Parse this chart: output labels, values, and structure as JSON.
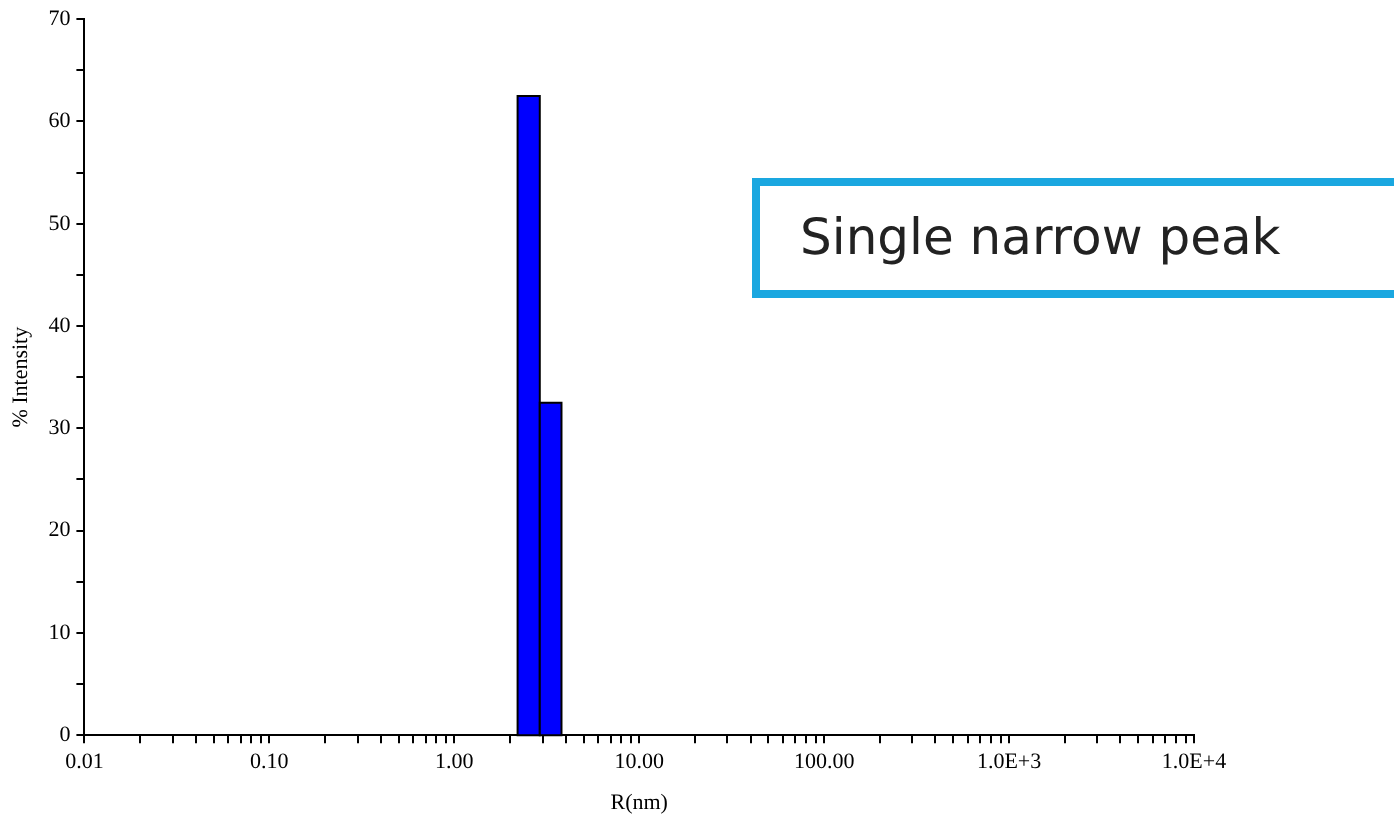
{
  "chart_data": {
    "type": "histogram",
    "xlabel": "R(nm)",
    "ylabel": "% Intensity",
    "annotations": [
      "Single narrow peak"
    ],
    "bins": [
      2.2,
      2.9,
      3.8
    ],
    "values": [
      62.5,
      32.5
    ],
    "color": "#0000ff",
    "log": "x",
    "grid": false,
    "xlim": [
      0.01,
      10000
    ],
    "xticks": [
      {
        "value": 0.01,
        "label": "0.01"
      },
      {
        "value": 0.02,
        "label": null
      },
      {
        "value": 0.03,
        "label": null
      },
      {
        "value": 0.04,
        "label": null
      },
      {
        "value": 0.05,
        "label": null
      },
      {
        "value": 0.06,
        "label": null
      },
      {
        "value": 0.07,
        "label": null
      },
      {
        "value": 0.08,
        "label": null
      },
      {
        "value": 0.09,
        "label": null
      },
      {
        "value": 0.1,
        "label": "0.10"
      },
      {
        "value": 0.2,
        "label": null
      },
      {
        "value": 0.3,
        "label": null
      },
      {
        "value": 0.4,
        "label": null
      },
      {
        "value": 0.5,
        "label": null
      },
      {
        "value": 0.6,
        "label": null
      },
      {
        "value": 0.7,
        "label": null
      },
      {
        "value": 0.8,
        "label": null
      },
      {
        "value": 0.9,
        "label": null
      },
      {
        "value": 1,
        "label": "1.00"
      },
      {
        "value": 2,
        "label": null
      },
      {
        "value": 3,
        "label": null
      },
      {
        "value": 4,
        "label": null
      },
      {
        "value": 5,
        "label": null
      },
      {
        "value": 6,
        "label": null
      },
      {
        "value": 7,
        "label": null
      },
      {
        "value": 8,
        "label": null
      },
      {
        "value": 9,
        "label": null
      },
      {
        "value": 10,
        "label": "10.00"
      },
      {
        "value": 20,
        "label": null
      },
      {
        "value": 30,
        "label": null
      },
      {
        "value": 40,
        "label": null
      },
      {
        "value": 50,
        "label": null
      },
      {
        "value": 60,
        "label": null
      },
      {
        "value": 70,
        "label": null
      },
      {
        "value": 80,
        "label": null
      },
      {
        "value": 90,
        "label": null
      },
      {
        "value": 100,
        "label": "100.00"
      },
      {
        "value": 200,
        "label": null
      },
      {
        "value": 300,
        "label": null
      },
      {
        "value": 400,
        "label": null
      },
      {
        "value": 500,
        "label": null
      },
      {
        "value": 600,
        "label": null
      },
      {
        "value": 700,
        "label": null
      },
      {
        "value": 800,
        "label": null
      },
      {
        "value": 900,
        "label": null
      },
      {
        "value": 1000,
        "label": "1.0E+3"
      },
      {
        "value": 2000,
        "label": null
      },
      {
        "value": 3000,
        "label": null
      },
      {
        "value": 4000,
        "label": null
      },
      {
        "value": 5000,
        "label": null
      },
      {
        "value": 6000,
        "label": null
      },
      {
        "value": 7000,
        "label": null
      },
      {
        "value": 8000,
        "label": null
      },
      {
        "value": 9000,
        "label": null
      },
      {
        "value": 10000,
        "label": "1.0E+4"
      }
    ],
    "ylim": [
      0,
      70
    ],
    "yticks": [
      0,
      {
        "value": 5,
        "label": null
      },
      10,
      {
        "value": 15,
        "label": null
      },
      20,
      {
        "value": 25,
        "label": null
      },
      30,
      {
        "value": 35,
        "label": null
      },
      40,
      {
        "value": 45,
        "label": null
      },
      50,
      {
        "value": 55,
        "label": null
      },
      60,
      {
        "value": 65,
        "label": null
      },
      70
    ]
  }
}
